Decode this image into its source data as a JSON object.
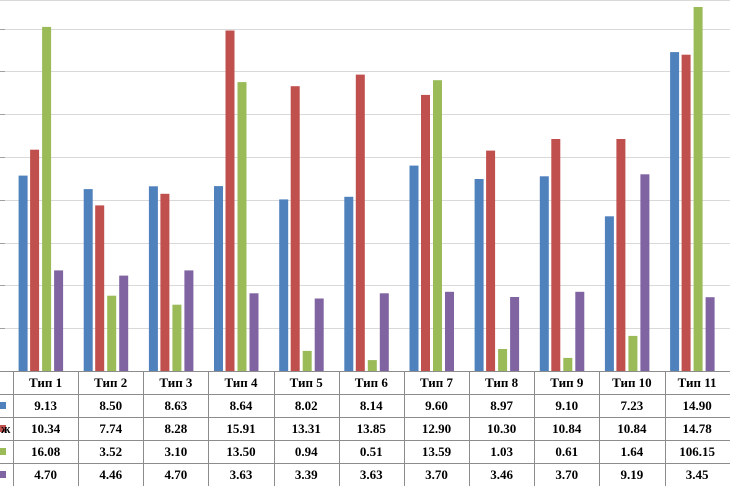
{
  "chart_data": {
    "type": "bar",
    "categories": [
      "Тип 1",
      "Тип 2",
      "Тип 3",
      "Тип 4",
      "Тип 5",
      "Тип 6",
      "Тип 7",
      "Тип 8",
      "Тип 9",
      "Тип 10",
      "Тип 11"
    ],
    "series": [
      {
        "row_label": "",
        "color": "#4F81BD",
        "values": [
          9.13,
          8.5,
          8.63,
          8.64,
          8.02,
          8.14,
          9.6,
          8.97,
          9.1,
          7.23,
          14.9
        ]
      },
      {
        "row_label": "ж",
        "color": "#C0504D",
        "values": [
          10.34,
          7.74,
          8.28,
          15.91,
          13.31,
          13.85,
          12.9,
          10.3,
          10.84,
          10.84,
          14.78
        ]
      },
      {
        "row_label": "",
        "color": "#9BBB59",
        "values": [
          16.08,
          3.52,
          3.1,
          13.5,
          0.94,
          0.51,
          13.59,
          1.03,
          0.61,
          1.64,
          106.15
        ]
      },
      {
        "row_label": "",
        "color": "#8064A2",
        "values": [
          4.7,
          4.46,
          4.7,
          3.63,
          3.39,
          3.63,
          3.7,
          3.46,
          3.7,
          9.19,
          3.45
        ]
      }
    ],
    "table_values": [
      [
        "9.13",
        "8.50",
        "8.63",
        "8.64",
        "8.02",
        "8.14",
        "9.60",
        "8.97",
        "9.10",
        "7.23",
        "14.90"
      ],
      [
        "10.34",
        "7.74",
        "8.28",
        "15.91",
        "13.31",
        "13.85",
        "12.90",
        "10.30",
        "10.84",
        "10.84",
        "14.78"
      ],
      [
        "16.08",
        "3.52",
        "3.10",
        "13.50",
        "0.94",
        "0.51",
        "13.59",
        "1.03",
        "0.61",
        "1.64",
        "106.15"
      ],
      [
        "4.70",
        "4.46",
        "4.70",
        "3.63",
        "3.39",
        "3.63",
        "3.70",
        "3.46",
        "3.70",
        "9.19",
        "3.45"
      ]
    ],
    "y_axis_visible_range": [
      0,
      17
    ],
    "clipped_bars": "bars taller than the plot area are cut at the top edge",
    "grid": true,
    "data_table_below": true
  }
}
